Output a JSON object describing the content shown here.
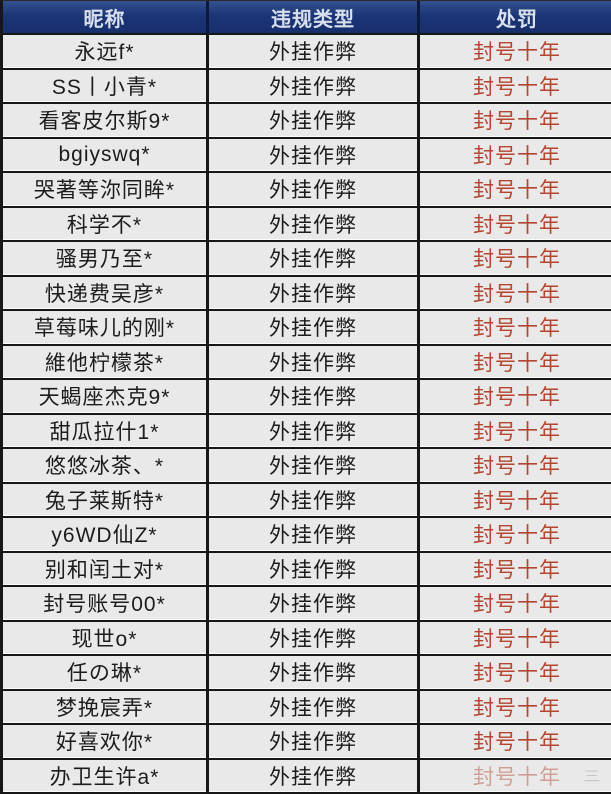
{
  "table": {
    "headers": [
      "昵称",
      "违规类型",
      "处罚"
    ],
    "rows": [
      {
        "nickname": "永远f*",
        "violation": "外挂作弊",
        "penalty": "封号十年"
      },
      {
        "nickname": "SS丨小青*",
        "violation": "外挂作弊",
        "penalty": "封号十年"
      },
      {
        "nickname": "看客皮尔斯9*",
        "violation": "外挂作弊",
        "penalty": "封号十年"
      },
      {
        "nickname": "bgiyswq*",
        "violation": "外挂作弊",
        "penalty": "封号十年"
      },
      {
        "nickname": "哭著等沵同眸*",
        "violation": "外挂作弊",
        "penalty": "封号十年"
      },
      {
        "nickname": "科学不*",
        "violation": "外挂作弊",
        "penalty": "封号十年"
      },
      {
        "nickname": "骚男乃至*",
        "violation": "外挂作弊",
        "penalty": "封号十年"
      },
      {
        "nickname": "快递费吴彦*",
        "violation": "外挂作弊",
        "penalty": "封号十年"
      },
      {
        "nickname": "草莓味儿的刚*",
        "violation": "外挂作弊",
        "penalty": "封号十年"
      },
      {
        "nickname": "維他柠檬茶*",
        "violation": "外挂作弊",
        "penalty": "封号十年"
      },
      {
        "nickname": "天蝎座杰克9*",
        "violation": "外挂作弊",
        "penalty": "封号十年"
      },
      {
        "nickname": "甜瓜拉什1*",
        "violation": "外挂作弊",
        "penalty": "封号十年"
      },
      {
        "nickname": "悠悠冰茶、*",
        "violation": "外挂作弊",
        "penalty": "封号十年"
      },
      {
        "nickname": "兔子莱斯特*",
        "violation": "外挂作弊",
        "penalty": "封号十年"
      },
      {
        "nickname": "y6WD仙Z*",
        "violation": "外挂作弊",
        "penalty": "封号十年"
      },
      {
        "nickname": "别和闰土对*",
        "violation": "外挂作弊",
        "penalty": "封号十年"
      },
      {
        "nickname": "封号账号00*",
        "violation": "外挂作弊",
        "penalty": "封号十年"
      },
      {
        "nickname": "现世o*",
        "violation": "外挂作弊",
        "penalty": "封号十年"
      },
      {
        "nickname": "任の琳*",
        "violation": "外挂作弊",
        "penalty": "封号十年"
      },
      {
        "nickname": "梦挽宸弄*",
        "violation": "外挂作弊",
        "penalty": "封号十年"
      },
      {
        "nickname": "好喜欢你*",
        "violation": "外挂作弊",
        "penalty": "封号十年"
      },
      {
        "nickname": "办卫生许a*",
        "violation": "外挂作弊",
        "penalty": "封号十年"
      }
    ],
    "watermark_remnant": "三"
  },
  "colors": {
    "header_bg": "#1c3577",
    "header_text": "#d8e0ee",
    "row_bg": "#e9e9e9",
    "border": "#171717",
    "penalty_red": "#b5452f"
  }
}
